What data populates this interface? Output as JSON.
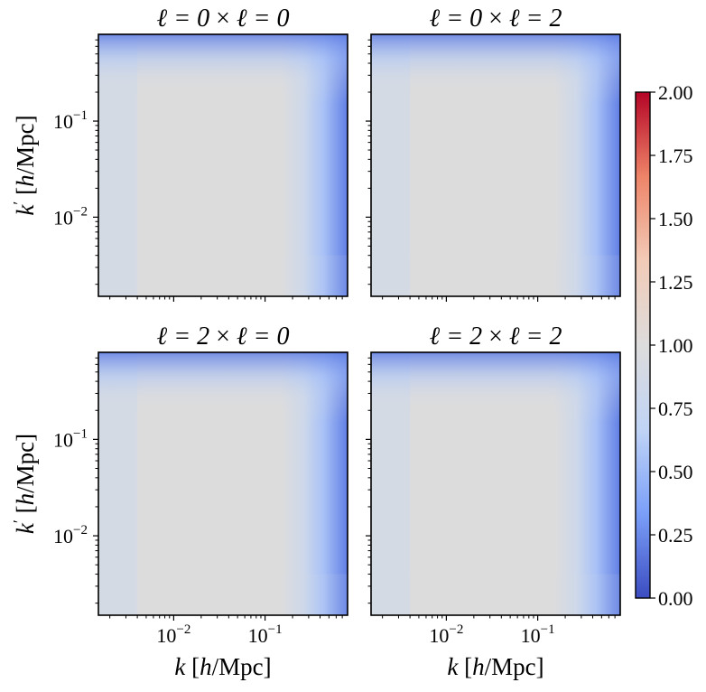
{
  "chart_data": {
    "type": "heatmap",
    "colormap": [
      "#3b4cc0",
      "#7b9ff9",
      "#c0d4f5",
      "#dddcdc",
      "#f2cbb7",
      "#ee8468",
      "#b40426"
    ],
    "colorbar": {
      "range": [
        0.0,
        2.0
      ],
      "ticks": [
        0.0,
        0.25,
        0.5,
        0.75,
        1.0,
        1.25,
        1.5,
        1.75,
        2.0
      ],
      "tick_labels": [
        "0.00",
        "0.25",
        "0.50",
        "0.75",
        "1.00",
        "1.25",
        "1.50",
        "1.75",
        "2.00"
      ]
    },
    "xscale": "log",
    "yscale": "log",
    "xlim": [
      0.0015,
      0.8
    ],
    "ylim": [
      0.0015,
      0.8
    ],
    "x_ticks": [
      0.01,
      0.1
    ],
    "y_ticks": [
      0.01,
      0.1
    ],
    "tick_label_base": "10",
    "tick_label_exps": [
      "−2",
      "−1"
    ],
    "xlabel_left": "k [",
    "xlabel_h": "h",
    "xlabel_right": "/Mpc]",
    "ylabel_left": "k",
    "ylabel_prime": "′",
    "ylabel_mid": " [",
    "ylabel_h": "h",
    "ylabel_right": "/Mpc]",
    "value_model": {
      "plateau": 1.0,
      "low_edge_k": 0.004,
      "low_edge_value": 0.9,
      "high_cutoff_k": 0.32,
      "high_cutoff_value": 0.0
    },
    "panels": [
      {
        "title_l1": "ℓ = 0",
        "title_sep": " × ",
        "title_l2": "ℓ = 0"
      },
      {
        "title_l1": "ℓ = 0",
        "title_sep": " × ",
        "title_l2": "ℓ = 2"
      },
      {
        "title_l1": "ℓ = 2",
        "title_sep": " × ",
        "title_l2": "ℓ = 0"
      },
      {
        "title_l1": "ℓ = 2",
        "title_sep": " × ",
        "title_l2": "ℓ = 2"
      }
    ]
  }
}
